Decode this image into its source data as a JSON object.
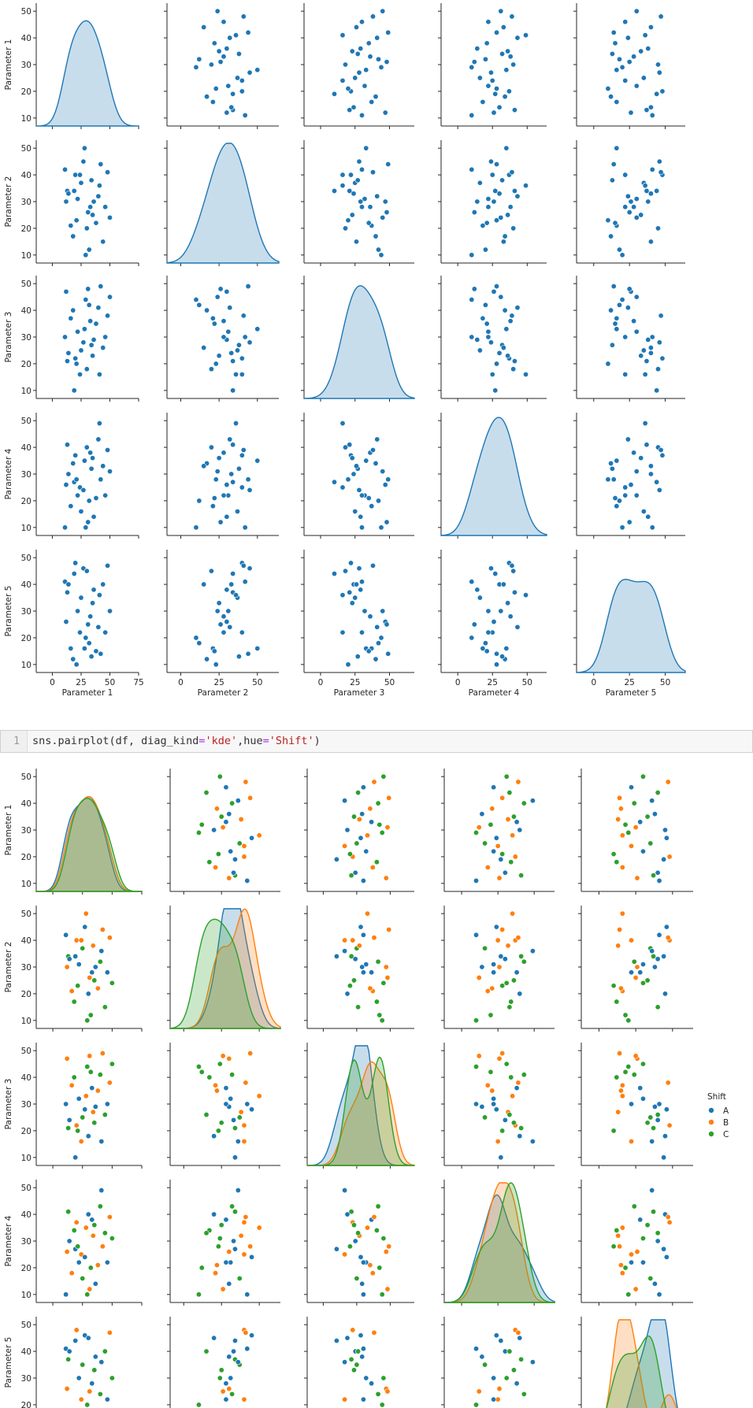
{
  "colors": {
    "A": "#1f77b4",
    "B": "#ff7f0e",
    "C": "#2ca02c",
    "axis": "#262626",
    "bg": "#ffffff"
  },
  "code_cell": {
    "line_number": "1",
    "parts": [
      {
        "t": "sns.pairplot(df, diag_kind",
        "c": "plain"
      },
      {
        "t": "=",
        "c": "op"
      },
      {
        "t": "'kde'",
        "c": "str"
      },
      {
        "t": ",hue",
        "c": "plain"
      },
      {
        "t": "=",
        "c": "op"
      },
      {
        "t": "'Shift'",
        "c": "str"
      },
      {
        "t": ")",
        "c": "plain"
      }
    ]
  },
  "chart_data": [
    {
      "type": "scatter",
      "title": "",
      "variables": [
        "Parameter 1",
        "Parameter 2",
        "Parameter 3",
        "Parameter 4",
        "Parameter 5"
      ],
      "x_ticks": [
        [
          "0",
          "25",
          "50",
          "75"
        ],
        [
          "0",
          "25",
          "50"
        ],
        [
          "0",
          "25",
          "50"
        ],
        [
          "0",
          "25",
          "50"
        ],
        [
          "0",
          "25",
          "50"
        ]
      ],
      "y_ticks": [
        [
          "10",
          "20",
          "30",
          "40",
          "50"
        ],
        [
          "10",
          "20",
          "30",
          "40",
          "50"
        ],
        [
          "10",
          "20",
          "30",
          "40",
          "50"
        ],
        [
          "10",
          "20",
          "30",
          "40",
          "50"
        ],
        [
          "10",
          "20",
          "30",
          "40",
          "50"
        ]
      ],
      "diag_kind": "kde",
      "data": [
        [
          11,
          42,
          30,
          10,
          41
        ],
        [
          12,
          30,
          47,
          26,
          26
        ],
        [
          13,
          34,
          21,
          41,
          37
        ],
        [
          14,
          33,
          24,
          30,
          40
        ],
        [
          16,
          21,
          37,
          18,
          16
        ],
        [
          18,
          17,
          40,
          34,
          12
        ],
        [
          19,
          34,
          10,
          27,
          44
        ],
        [
          20,
          40,
          22,
          37,
          48
        ],
        [
          21,
          23,
          20,
          28,
          10
        ],
        [
          22,
          31,
          32,
          22,
          30
        ],
        [
          24,
          40,
          16,
          25,
          22
        ],
        [
          25,
          37,
          25,
          16,
          35
        ],
        [
          27,
          45,
          28,
          24,
          46
        ],
        [
          28,
          50,
          33,
          35,
          16
        ],
        [
          29,
          10,
          44,
          10,
          20
        ],
        [
          30,
          20,
          18,
          40,
          45
        ],
        [
          31,
          26,
          48,
          12,
          25
        ],
        [
          32,
          12,
          42,
          20,
          18
        ],
        [
          33,
          28,
          36,
          38,
          28
        ],
        [
          34,
          38,
          27,
          32,
          13
        ],
        [
          35,
          25,
          23,
          36,
          33
        ],
        [
          36,
          30,
          29,
          14,
          38
        ],
        [
          38,
          22,
          35,
          21,
          15
        ],
        [
          40,
          32,
          41,
          43,
          24
        ],
        [
          41,
          36,
          16,
          49,
          36
        ],
        [
          42,
          44,
          49,
          28,
          14
        ],
        [
          44,
          15,
          26,
          33,
          40
        ],
        [
          46,
          28,
          30,
          22,
          22
        ],
        [
          48,
          41,
          38,
          39,
          47
        ],
        [
          50,
          24,
          45,
          31,
          30
        ]
      ],
      "legend": null
    },
    {
      "type": "scatter",
      "title": "",
      "variables": [
        "Parameter 1",
        "Parameter 2",
        "Parameter 3",
        "Parameter 4",
        "Parameter 5"
      ],
      "y_ticks": [
        [
          "10",
          "20",
          "30",
          "40",
          "50"
        ],
        [
          "10",
          "20",
          "30",
          "40",
          "50"
        ],
        [
          "10",
          "20",
          "30",
          "40",
          "50"
        ],
        [
          "10",
          "20",
          "30",
          "40",
          "50"
        ],
        [
          "20",
          "30",
          "40",
          "50"
        ]
      ],
      "diag_kind": "kde",
      "hue": "Shift",
      "groups": [
        "A",
        "B",
        "C",
        "A",
        "B",
        "C",
        "A",
        "B",
        "C",
        "A",
        "B",
        "C",
        "A",
        "B",
        "C",
        "A",
        "B",
        "C",
        "A",
        "B",
        "C",
        "A",
        "B",
        "C",
        "A",
        "B",
        "C",
        "A",
        "B",
        "C"
      ],
      "legend": {
        "title": "Shift",
        "entries": [
          "A",
          "B",
          "C"
        ],
        "placement": "right"
      }
    }
  ]
}
